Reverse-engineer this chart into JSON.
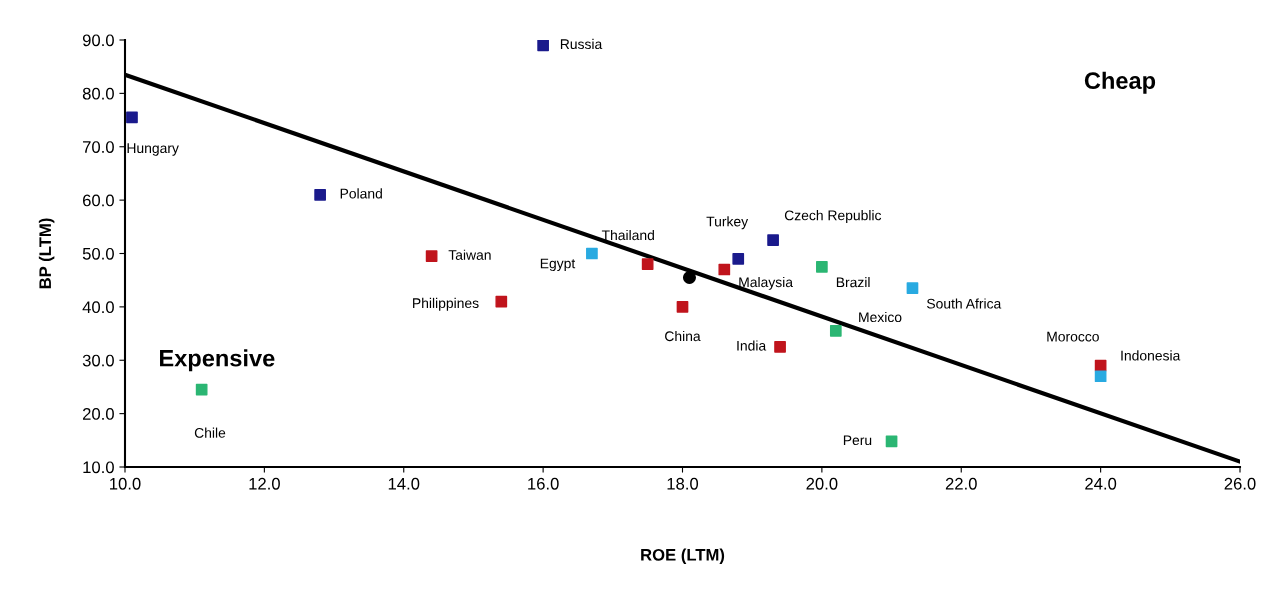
{
  "chart_data": {
    "type": "scatter",
    "xlabel": "ROE (LTM)",
    "ylabel": "BP (LTM)",
    "marker": "square",
    "grid": false,
    "xlim": [
      10,
      26
    ],
    "ylim": [
      10,
      90
    ],
    "xticks": [
      {
        "value": 10,
        "label": "10.0"
      },
      {
        "value": 12,
        "label": "12.0"
      },
      {
        "value": 14,
        "label": "14.0"
      },
      {
        "value": 16,
        "label": "16.0"
      },
      {
        "value": 18,
        "label": "18.0"
      },
      {
        "value": 20,
        "label": "20.0"
      },
      {
        "value": 22,
        "label": "22.0"
      },
      {
        "value": 24,
        "label": "24.0"
      },
      {
        "value": 26,
        "label": "26.0"
      }
    ],
    "yticks": [
      {
        "value": 10,
        "label": "10.0"
      },
      {
        "value": 20,
        "label": "20.0"
      },
      {
        "value": 30,
        "label": "30.0"
      },
      {
        "value": 40,
        "label": "40.0"
      },
      {
        "value": 50,
        "label": "50.0"
      },
      {
        "value": 60,
        "label": "60.0"
      },
      {
        "value": 70,
        "label": "70.0"
      },
      {
        "value": 80,
        "label": "80.0"
      },
      {
        "value": 90,
        "label": "90.0"
      }
    ],
    "series": [
      {
        "color": "#1a1a8c",
        "x": [
          16.0,
          10.1,
          12.8,
          18.8,
          19.3
        ],
        "values": [
          89.0,
          75.5,
          61.0,
          49.0,
          52.5
        ]
      },
      {
        "color": "#c0141c",
        "x": [
          14.4,
          15.4,
          17.5,
          18.0,
          18.6,
          19.4,
          24.0
        ],
        "values": [
          49.5,
          41.0,
          48.0,
          40.0,
          47.0,
          32.5,
          29.0
        ]
      },
      {
        "color": "#2bb673",
        "x": [
          20.0,
          20.2,
          21.0,
          11.1
        ],
        "values": [
          47.5,
          35.5,
          14.8,
          24.5
        ]
      },
      {
        "color": "#29aae1",
        "x": [
          16.7,
          21.3,
          24.0
        ],
        "values": [
          50.0,
          43.5,
          27.0
        ]
      },
      {
        "color": "#000000",
        "x": [
          18.1
        ],
        "values": [
          45.5
        ],
        "marker": "circle"
      },
      {
        "type": "line",
        "color": "#000000",
        "x": [
          10,
          26
        ],
        "values": [
          83.5,
          11.0
        ],
        "marker": "none",
        "line_style": "solid"
      }
    ],
    "annotations": [
      {
        "text": "Russia",
        "x": 16.0,
        "y": 89.0
      },
      {
        "text": "Hungary",
        "x": 10.1,
        "y": 75.5
      },
      {
        "text": "Poland",
        "x": 12.8,
        "y": 61.0
      },
      {
        "text": "Turkey",
        "x": 18.8,
        "y": 49.0
      },
      {
        "text": "Czech Republic",
        "x": 19.3,
        "y": 52.5
      },
      {
        "text": "Taiwan",
        "x": 14.4,
        "y": 49.5
      },
      {
        "text": "Philippines",
        "x": 15.4,
        "y": 41.0
      },
      {
        "text": "Thailand",
        "x": 17.5,
        "y": 48.0
      },
      {
        "text": "China",
        "x": 18.0,
        "y": 40.0
      },
      {
        "text": "Malaysia",
        "x": 18.6,
        "y": 47.0
      },
      {
        "text": "India",
        "x": 19.4,
        "y": 32.5
      },
      {
        "text": "Morocco",
        "x": 24.0,
        "y": 29.0
      },
      {
        "text": "Brazil",
        "x": 20.0,
        "y": 47.5
      },
      {
        "text": "Mexico",
        "x": 20.2,
        "y": 35.5
      },
      {
        "text": "Peru",
        "x": 21.0,
        "y": 14.8
      },
      {
        "text": "Chile",
        "x": 11.1,
        "y": 24.5
      },
      {
        "text": "Egypt",
        "x": 16.7,
        "y": 50.0
      },
      {
        "text": "South Africa",
        "x": 21.3,
        "y": 43.5
      },
      {
        "text": "Indonesia",
        "x": 24.0,
        "y": 27.0
      },
      "Expensive",
      "Cheap"
    ]
  }
}
